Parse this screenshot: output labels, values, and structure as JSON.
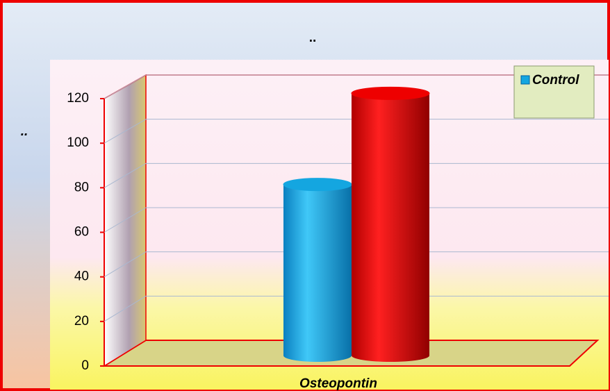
{
  "chart_data": {
    "type": "bar3d",
    "title": "..",
    "y_label": "..",
    "categories": [
      "Osteopontin"
    ],
    "series": [
      {
        "name": "Control",
        "color": "#14a6e0",
        "values": [
          77
        ]
      },
      {
        "color": "#ee0000",
        "values": [
          118
        ]
      }
    ],
    "ylim": [
      0,
      120
    ],
    "yticks": [
      0,
      20,
      40,
      60,
      80,
      100,
      120
    ],
    "grid": true,
    "legend": "top-right"
  }
}
